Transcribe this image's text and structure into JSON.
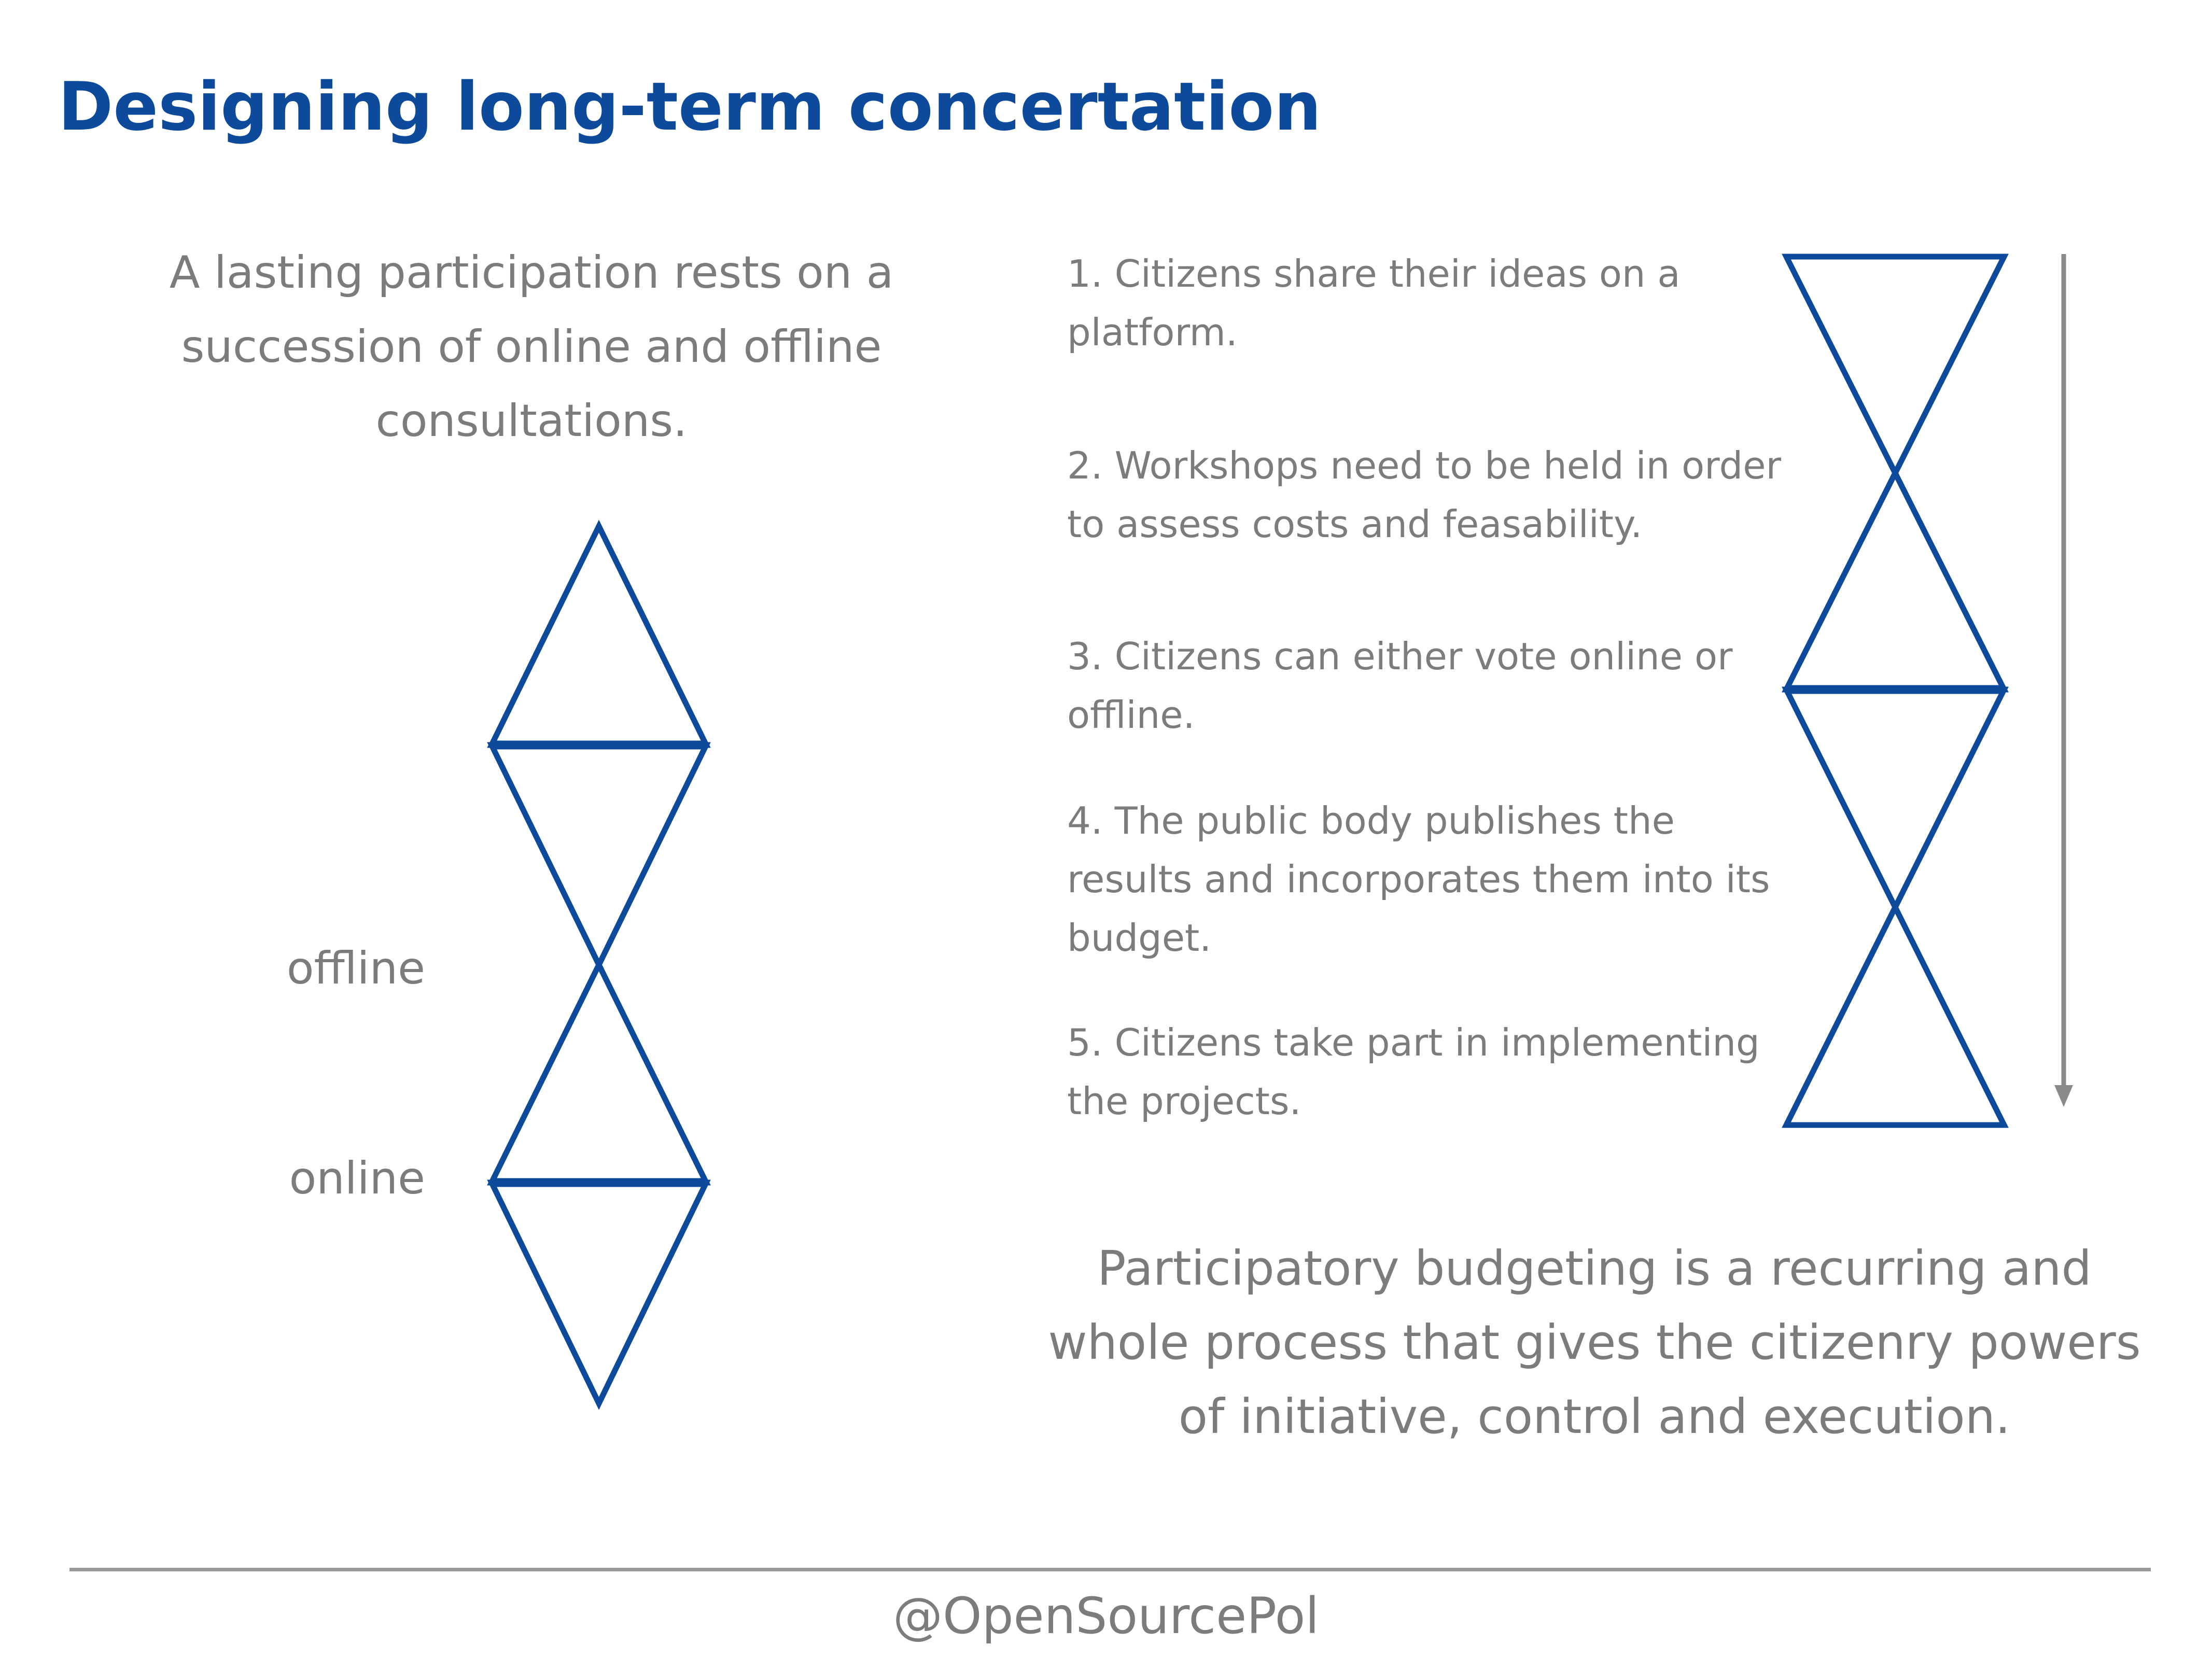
{
  "title": "Designing long-term concertation",
  "intro_text": "A lasting participation rests on a succession of online and offline consultations.",
  "left_diagram": {
    "labels": {
      "offline": "offline",
      "online": "online"
    }
  },
  "steps": [
    "1. Citizens share their ideas on a platform.",
    "2. Workshops need to be held in order to assess costs and feasability.",
    "3. Citizens can either vote online or offline.",
    "4. The public body publishes the results and incorporates them into its budget.",
    "5. Citizens take part in implementing the projects."
  ],
  "summary": "Participatory budgeting is a recurring and whole process that gives the citizenry powers of initiative, control and execution.",
  "footer": {
    "handle": "@OpenSourcePol"
  },
  "colors": {
    "accent_blue": "#0d4a9c",
    "text_gray": "#7c7c7c",
    "arrow_gray": "#8a8a8a",
    "rule_gray": "#9a9a9a"
  },
  "icons": {
    "arrow": "down-arrow-icon"
  }
}
